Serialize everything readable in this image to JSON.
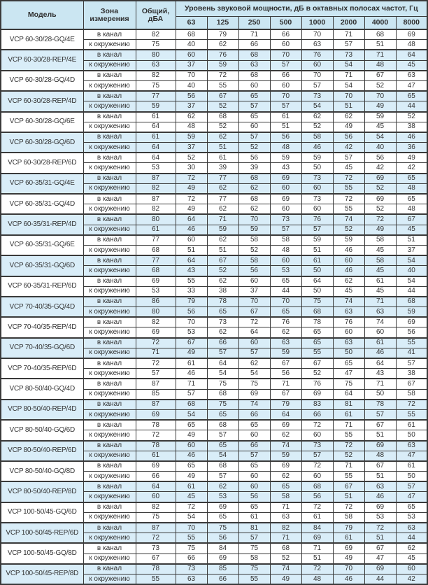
{
  "colors": {
    "header_bg": "#cbe6f2",
    "shaded_row_bg": "#d9edf8",
    "border_dark": "#3a3a3a",
    "border_light": "#8d8d8d"
  },
  "table": {
    "header": {
      "model": "Модель",
      "zone": "Зона измерения",
      "total": "Общий, дБА",
      "spl_title": "Уровень звуковой мощности, дБ в октавных полосах частот, Гц",
      "frequencies": [
        "63",
        "125",
        "250",
        "500",
        "1000",
        "2000",
        "4000",
        "8000"
      ]
    },
    "groups": [
      {
        "model": "VCP 60-30/28-GQ/4E",
        "shaded": false,
        "rows": [
          {
            "zone": "в канал",
            "total": 82,
            "levels": [
              68,
              79,
              71,
              66,
              70,
              71,
              68,
              69
            ]
          },
          {
            "zone": "к окружению",
            "total": 75,
            "levels": [
              40,
              62,
              66,
              60,
              63,
              57,
              51,
              48
            ]
          }
        ]
      },
      {
        "model": "VCP 60-30/28-REP/4E",
        "shaded": true,
        "rows": [
          {
            "zone": "в канал",
            "total": 80,
            "levels": [
              60,
              76,
              68,
              70,
              76,
              73,
              71,
              64
            ]
          },
          {
            "zone": "к окружению",
            "total": 63,
            "levels": [
              37,
              59,
              63,
              57,
              60,
              54,
              48,
              45
            ]
          }
        ]
      },
      {
        "model": "VCP 60-30/28-GQ/4D",
        "shaded": false,
        "rows": [
          {
            "zone": "в канал",
            "total": 82,
            "levels": [
              70,
              72,
              68,
              66,
              70,
              71,
              67,
              63
            ]
          },
          {
            "zone": "к окружению",
            "total": 75,
            "levels": [
              40,
              55,
              60,
              60,
              57,
              54,
              52,
              47
            ]
          }
        ]
      },
      {
        "model": "VCP 60-30/28-REP/4D",
        "shaded": true,
        "rows": [
          {
            "zone": "в канал",
            "total": 77,
            "levels": [
              56,
              67,
              65,
              70,
              73,
              70,
              70,
              65
            ]
          },
          {
            "zone": "к окружению",
            "total": 59,
            "levels": [
              37,
              52,
              57,
              57,
              54,
              51,
              49,
              44
            ]
          }
        ]
      },
      {
        "model": "VCP 60-30/28-GQ/6E",
        "shaded": false,
        "rows": [
          {
            "zone": "в канал",
            "total": 61,
            "levels": [
              62,
              68,
              65,
              61,
              62,
              62,
              59,
              52
            ]
          },
          {
            "zone": "к окружению",
            "total": 64,
            "levels": [
              48,
              52,
              60,
              51,
              52,
              49,
              45,
              38
            ]
          }
        ]
      },
      {
        "model": "VCP 60-30/28-GQ/6D",
        "shaded": true,
        "rows": [
          {
            "zone": "в канал",
            "total": 61,
            "levels": [
              59,
              62,
              57,
              56,
              58,
              56,
              54,
              46
            ]
          },
          {
            "zone": "к окружению",
            "total": 64,
            "levels": [
              37,
              51,
              52,
              48,
              46,
              42,
              40,
              36
            ]
          }
        ]
      },
      {
        "model": "VCP 60-30/28-REP/6D",
        "shaded": false,
        "rows": [
          {
            "zone": "в канал",
            "total": 64,
            "levels": [
              52,
              61,
              56,
              59,
              59,
              57,
              56,
              49
            ]
          },
          {
            "zone": "к окружению",
            "total": 53,
            "levels": [
              30,
              39,
              39,
              43,
              50,
              45,
              42,
              42
            ]
          }
        ]
      },
      {
        "model": "VCP 60-35/31-GQ/4E",
        "shaded": true,
        "rows": [
          {
            "zone": "в канал",
            "total": 87,
            "levels": [
              72,
              77,
              68,
              69,
              73,
              72,
              69,
              65
            ]
          },
          {
            "zone": "к окружению",
            "total": 82,
            "levels": [
              49,
              62,
              62,
              60,
              60,
              55,
              52,
              48
            ]
          }
        ]
      },
      {
        "model": "VCP 60-35/31-GQ/4D",
        "shaded": false,
        "rows": [
          {
            "zone": "в канал",
            "total": 87,
            "levels": [
              72,
              77,
              68,
              69,
              73,
              72,
              69,
              65
            ]
          },
          {
            "zone": "к окружению",
            "total": 82,
            "levels": [
              49,
              62,
              62,
              60,
              60,
              55,
              52,
              48
            ]
          }
        ]
      },
      {
        "model": "VCP 60-35/31-REP/4D",
        "shaded": true,
        "rows": [
          {
            "zone": "в канал",
            "total": 80,
            "levels": [
              64,
              71,
              70,
              73,
              76,
              74,
              72,
              67
            ]
          },
          {
            "zone": "к окружению",
            "total": 61,
            "levels": [
              46,
              59,
              59,
              57,
              57,
              52,
              49,
              45
            ]
          }
        ]
      },
      {
        "model": "VCP 60-35/31-GQ/6E",
        "shaded": false,
        "rows": [
          {
            "zone": "в канал",
            "total": 77,
            "levels": [
              60,
              62,
              58,
              58,
              59,
              59,
              58,
              51
            ]
          },
          {
            "zone": "к окружению",
            "total": 68,
            "levels": [
              51,
              51,
              52,
              48,
              51,
              46,
              45,
              37
            ]
          }
        ]
      },
      {
        "model": "VCP 60-35/31-GQ/6D",
        "shaded": true,
        "rows": [
          {
            "zone": "в канал",
            "total": 77,
            "levels": [
              64,
              67,
              58,
              60,
              61,
              60,
              58,
              54
            ]
          },
          {
            "zone": "к окружению",
            "total": 68,
            "levels": [
              43,
              52,
              56,
              53,
              50,
              46,
              45,
              40
            ]
          }
        ]
      },
      {
        "model": "VCP 60-35/31-REP/6D",
        "shaded": false,
        "rows": [
          {
            "zone": "в канал",
            "total": 69,
            "levels": [
              55,
              62,
              60,
              65,
              64,
              62,
              61,
              54
            ]
          },
          {
            "zone": "к окружению",
            "total": 53,
            "levels": [
              33,
              38,
              37,
              44,
              50,
              45,
              45,
              44
            ]
          }
        ]
      },
      {
        "model": "VCP 70-40/35-GQ/4D",
        "shaded": true,
        "rows": [
          {
            "zone": "в канал",
            "total": 86,
            "levels": [
              79,
              78,
              70,
              70,
              75,
              74,
              71,
              68
            ]
          },
          {
            "zone": "к окружению",
            "total": 80,
            "levels": [
              56,
              65,
              67,
              65,
              68,
              63,
              63,
              59
            ]
          }
        ]
      },
      {
        "model": "VCP 70-40/35-REP/4D",
        "shaded": false,
        "rows": [
          {
            "zone": "в канал",
            "total": 82,
            "levels": [
              70,
              73,
              72,
              76,
              78,
              76,
              74,
              69
            ]
          },
          {
            "zone": "к окружению",
            "total": 69,
            "levels": [
              53,
              62,
              64,
              62,
              65,
              60,
              60,
              56
            ]
          }
        ]
      },
      {
        "model": "VCP 70-40/35-GQ/6D",
        "shaded": true,
        "rows": [
          {
            "zone": "в канал",
            "total": 72,
            "levels": [
              67,
              66,
              60,
              63,
              65,
              63,
              61,
              55
            ]
          },
          {
            "zone": "к окружению",
            "total": 71,
            "levels": [
              49,
              57,
              57,
              59,
              55,
              50,
              46,
              41
            ]
          }
        ]
      },
      {
        "model": "VCP 70-40/35-REP/6D",
        "shaded": false,
        "rows": [
          {
            "zone": "в канал",
            "total": 72,
            "levels": [
              61,
              64,
              62,
              67,
              67,
              65,
              64,
              57
            ]
          },
          {
            "zone": "к окружению",
            "total": 57,
            "levels": [
              46,
              54,
              54,
              56,
              52,
              47,
              43,
              38
            ]
          }
        ]
      },
      {
        "model": "VCP 80-50/40-GQ/4D",
        "shaded": false,
        "rows": [
          {
            "zone": "в канал",
            "total": 87,
            "levels": [
              71,
              75,
              75,
              71,
              76,
              75,
              71,
              67
            ]
          },
          {
            "zone": "к окружению",
            "total": 85,
            "levels": [
              57,
              68,
              69,
              67,
              69,
              64,
              50,
              58
            ]
          }
        ]
      },
      {
        "model": "VCP 80-50/40-REP/4D",
        "shaded": true,
        "rows": [
          {
            "zone": "в канал",
            "total": 87,
            "levels": [
              68,
              75,
              74,
              79,
              83,
              81,
              78,
              72
            ]
          },
          {
            "zone": "к окружению",
            "total": 69,
            "levels": [
              54,
              65,
              66,
              64,
              66,
              61,
              57,
              55
            ]
          }
        ]
      },
      {
        "model": "VCP 80-50/40-GQ/6D",
        "shaded": false,
        "rows": [
          {
            "zone": "в канал",
            "total": 78,
            "levels": [
              65,
              68,
              65,
              69,
              72,
              71,
              67,
              61
            ]
          },
          {
            "zone": "к окружению",
            "total": 72,
            "levels": [
              49,
              57,
              60,
              62,
              60,
              55,
              51,
              50
            ]
          }
        ]
      },
      {
        "model": "VCP 80-50/40-REP/6D",
        "shaded": true,
        "rows": [
          {
            "zone": "в канал",
            "total": 78,
            "levels": [
              60,
              65,
              66,
              74,
              73,
              72,
              69,
              63
            ]
          },
          {
            "zone": "к окружению",
            "total": 61,
            "levels": [
              46,
              54,
              57,
              59,
              57,
              52,
              48,
              47
            ]
          }
        ]
      },
      {
        "model": "VCP 80-50/40-GQ/8D",
        "shaded": false,
        "rows": [
          {
            "zone": "в канал",
            "total": 69,
            "levels": [
              65,
              68,
              65,
              69,
              72,
              71,
              67,
              61
            ]
          },
          {
            "zone": "к окружению",
            "total": 66,
            "levels": [
              49,
              57,
              60,
              62,
              60,
              55,
              51,
              50
            ]
          }
        ]
      },
      {
        "model": "VCP 80-50/40-REP/8D",
        "shaded": true,
        "rows": [
          {
            "zone": "в канал",
            "total": 64,
            "levels": [
              61,
              62,
              60,
              65,
              68,
              67,
              63,
              57
            ]
          },
          {
            "zone": "к окружению",
            "total": 60,
            "levels": [
              45,
              53,
              56,
              58,
              56,
              51,
              46,
              47
            ]
          }
        ]
      },
      {
        "model": "VCP 100-50/45-GQ/6D",
        "shaded": false,
        "rows": [
          {
            "zone": "в канал",
            "total": 82,
            "levels": [
              72,
              69,
              65,
              71,
              72,
              72,
              69,
              65
            ]
          },
          {
            "zone": "к окружению",
            "total": 75,
            "levels": [
              54,
              65,
              61,
              63,
              61,
              58,
              53,
              53
            ]
          }
        ]
      },
      {
        "model": "VCP 100-50/45-REP/6D",
        "shaded": true,
        "rows": [
          {
            "zone": "в канал",
            "total": 87,
            "levels": [
              70,
              75,
              81,
              82,
              84,
              79,
              72,
              63
            ]
          },
          {
            "zone": "к окружению",
            "total": 72,
            "levels": [
              55,
              56,
              57,
              71,
              69,
              61,
              51,
              44
            ]
          }
        ]
      },
      {
        "model": "VCP 100-50/45-GQ/8D",
        "shaded": false,
        "rows": [
          {
            "zone": "в канал",
            "total": 73,
            "levels": [
              75,
              84,
              75,
              68,
              71,
              69,
              67,
              62
            ]
          },
          {
            "zone": "к окружению",
            "total": 67,
            "levels": [
              66,
              69,
              58,
              52,
              51,
              49,
              47,
              45
            ]
          }
        ]
      },
      {
        "model": "VCP 100-50/45-REP/8D",
        "shaded": true,
        "rows": [
          {
            "zone": "в канал",
            "total": 78,
            "levels": [
              73,
              85,
              75,
              74,
              72,
              70,
              69,
              60
            ]
          },
          {
            "zone": "к окружению",
            "total": 55,
            "levels": [
              63,
              66,
              55,
              49,
              48,
              46,
              44,
              42
            ]
          }
        ]
      }
    ]
  }
}
